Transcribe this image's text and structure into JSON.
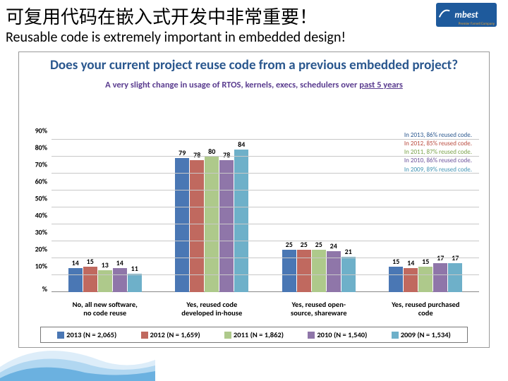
{
  "title_cn": "可复用代码在嵌入式开发中非常重要！",
  "title_en": "Reusable code is extremely important in embedded design!",
  "logo": {
    "text": "mbest",
    "sub": "Premier Farnell Company"
  },
  "chart": {
    "type": "bar",
    "title": "Does your current project reuse code from a previous embedded project?",
    "subtitle_a": "A very slight change in usage of RTOS, kernels, execs, schedulers over ",
    "subtitle_b": "past 5 years",
    "title_color": "#2a578e",
    "subtitle_color": "#5a3c8f",
    "background_color": "#ffffff",
    "grid_color": "#c8c8c8",
    "y_max": 100,
    "y_ticks": [
      10,
      20,
      30,
      40,
      50,
      60,
      70,
      80,
      90
    ],
    "y_tick_labels": [
      "10%",
      "20%",
      "30%",
      "40%",
      "50%",
      "60%",
      "70%",
      "80%",
      "90%"
    ],
    "y_pct_label": "%",
    "series": [
      {
        "name": "2013 (N = 2,065)",
        "color": "#4a77b4"
      },
      {
        "name": "2012 (N = 1,659)",
        "color": "#c0695f"
      },
      {
        "name": "2011 (N = 1,862)",
        "color": "#aec98b"
      },
      {
        "name": "2010 (N = 1,540)",
        "color": "#8f76a9"
      },
      {
        "name": "2009 (N = 1,534)",
        "color": "#6eb0c9"
      }
    ],
    "categories": [
      {
        "label_l1": "No, all new software,",
        "label_l2": "no code reuse",
        "values": [
          14,
          15,
          13,
          14,
          11
        ]
      },
      {
        "label_l1": "Yes, reused code",
        "label_l2": "developed in-house",
        "values": [
          79,
          78,
          80,
          78,
          84
        ]
      },
      {
        "label_l1": "Yes, reused open-",
        "label_l2": "source, shareware",
        "values": [
          25,
          25,
          25,
          24,
          21
        ]
      },
      {
        "label_l1": "Yes, reused purchased",
        "label_l2": "code",
        "values": [
          15,
          14,
          15,
          17,
          17
        ]
      }
    ],
    "annotations": [
      {
        "text": "In 2013, 86% reused code.",
        "color": "#2a578e"
      },
      {
        "text": "In 2012, 85% reused code.",
        "color": "#b94a3d"
      },
      {
        "text": "In 2011, 87% reused code.",
        "color": "#7aa24a"
      },
      {
        "text": "In 2010, 86% reused code.",
        "color": "#6b529b"
      },
      {
        "text": "In 2009, 89% reused code.",
        "color": "#3f93b3"
      }
    ]
  }
}
